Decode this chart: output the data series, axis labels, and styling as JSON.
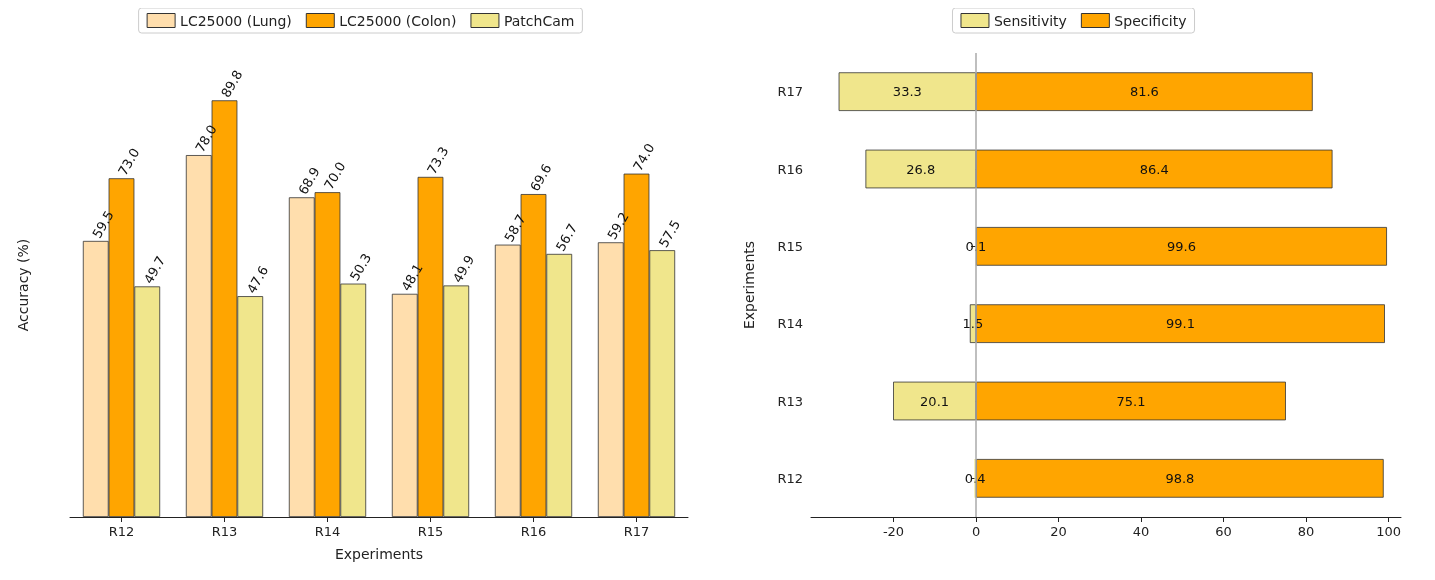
{
  "chart_data": [
    {
      "type": "bar",
      "categories": [
        "R12",
        "R13",
        "R14",
        "R15",
        "R16",
        "R17"
      ],
      "xlabel": "Experiments",
      "ylabel": "Accuracy (%)",
      "series": [
        {
          "name": "LC25000 (Lung)",
          "color": "#ffdead",
          "values": [
            59.5,
            78.0,
            68.9,
            48.1,
            58.7,
            59.2
          ],
          "value_labels": [
            "59.5",
            "78.0",
            "68.9",
            "48.1",
            "58.7",
            "59.2"
          ]
        },
        {
          "name": "LC25000 (Colon)",
          "color": "#ffa500",
          "values": [
            73.0,
            89.8,
            70.0,
            73.3,
            69.6,
            74.0
          ],
          "value_labels": [
            "73.0",
            "89.8",
            "70.0",
            "73.3",
            "69.6",
            "74.0"
          ]
        },
        {
          "name": "PatchCam",
          "color": "#f0e68c",
          "values": [
            49.7,
            47.6,
            50.3,
            49.9,
            56.7,
            57.5
          ],
          "value_labels": [
            "49.7",
            "47.6",
            "50.3",
            "49.9",
            "56.7",
            "57.5"
          ]
        }
      ],
      "tick_labels": "x",
      "legend": "top",
      "grid": false
    },
    {
      "type": "bar",
      "orientation": "horizontal",
      "categories": [
        "R17",
        "R16",
        "R15",
        "R14",
        "R13",
        "R12"
      ],
      "ylabel": "Experiments",
      "series": [
        {
          "name": "Sensitivity",
          "color": "#f0e68c",
          "values": [
            33.3,
            26.8,
            0.1,
            1.5,
            20.1,
            0.4
          ],
          "base": [
            -33.3,
            -26.8,
            -0.1,
            -1.5,
            -20.1,
            -0.4
          ],
          "value_labels": [
            "33.3",
            "26.8",
            "0.1",
            "1.5",
            "20.1",
            "0.4"
          ]
        },
        {
          "name": "Specificity",
          "color": "#ffa500",
          "values": [
            81.6,
            86.4,
            99.6,
            99.1,
            75.1,
            98.8
          ],
          "value_labels": [
            "81.6",
            "86.4",
            "99.6",
            "99.1",
            "75.1",
            "98.8"
          ]
        }
      ],
      "xlim": [
        -40,
        103
      ],
      "xticks": [
        -20,
        0,
        20,
        40,
        60,
        80,
        100
      ],
      "ref_lines": [
        {
          "axis": "x",
          "value": 0,
          "color": "#aaaaaa"
        }
      ],
      "legend": "top",
      "grid": false
    }
  ]
}
